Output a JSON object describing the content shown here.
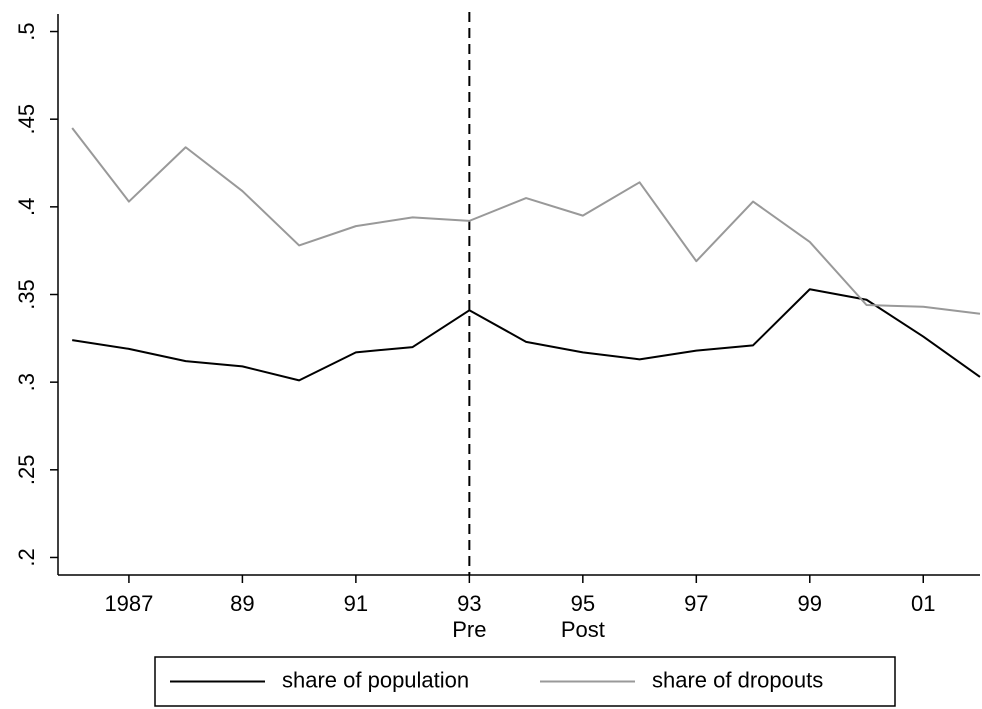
{
  "chart_data": {
    "type": "line",
    "x": [
      1986,
      1987,
      1988,
      1989,
      1990,
      1991,
      1992,
      1993,
      1994,
      1995,
      1996,
      1997,
      1998,
      1999,
      2000,
      2001,
      2002
    ],
    "series": [
      {
        "name": "share of population",
        "color": "#000000",
        "values": [
          0.324,
          0.319,
          0.312,
          0.309,
          0.301,
          0.317,
          0.32,
          0.341,
          0.323,
          0.317,
          0.313,
          0.318,
          0.321,
          0.353,
          0.347,
          0.326,
          0.303
        ]
      },
      {
        "name": "share of dropouts",
        "color": "#999999",
        "values": [
          0.445,
          0.403,
          0.434,
          0.409,
          0.378,
          0.389,
          0.394,
          0.392,
          0.405,
          0.395,
          0.414,
          0.369,
          0.403,
          0.38,
          0.344,
          0.343,
          0.339
        ]
      }
    ],
    "xlim": [
      1985.75,
      2002
    ],
    "xticks": [
      {
        "value": 1987,
        "label": "1987"
      },
      {
        "value": 1989,
        "label": "89"
      },
      {
        "value": 1991,
        "label": "91"
      },
      {
        "value": 1993,
        "label": "93"
      },
      {
        "value": 1995,
        "label": "95"
      },
      {
        "value": 1997,
        "label": "97"
      },
      {
        "value": 1999,
        "label": "99"
      },
      {
        "value": 2001,
        "label": "01"
      }
    ],
    "ylim": [
      0.19,
      0.51
    ],
    "yticks": [
      {
        "value": 0.2,
        "label": ".2"
      },
      {
        "value": 0.25,
        "label": ".25"
      },
      {
        "value": 0.3,
        "label": ".3"
      },
      {
        "value": 0.35,
        "label": ".35"
      },
      {
        "value": 0.4,
        "label": ".4"
      },
      {
        "value": 0.45,
        "label": ".45"
      },
      {
        "value": 0.5,
        "label": ".5"
      }
    ],
    "vline": 1993,
    "annotations": [
      {
        "text": "Pre",
        "x": 1993
      },
      {
        "text": "Post",
        "x": 1995
      }
    ],
    "grid": false,
    "legend": "bottom"
  }
}
